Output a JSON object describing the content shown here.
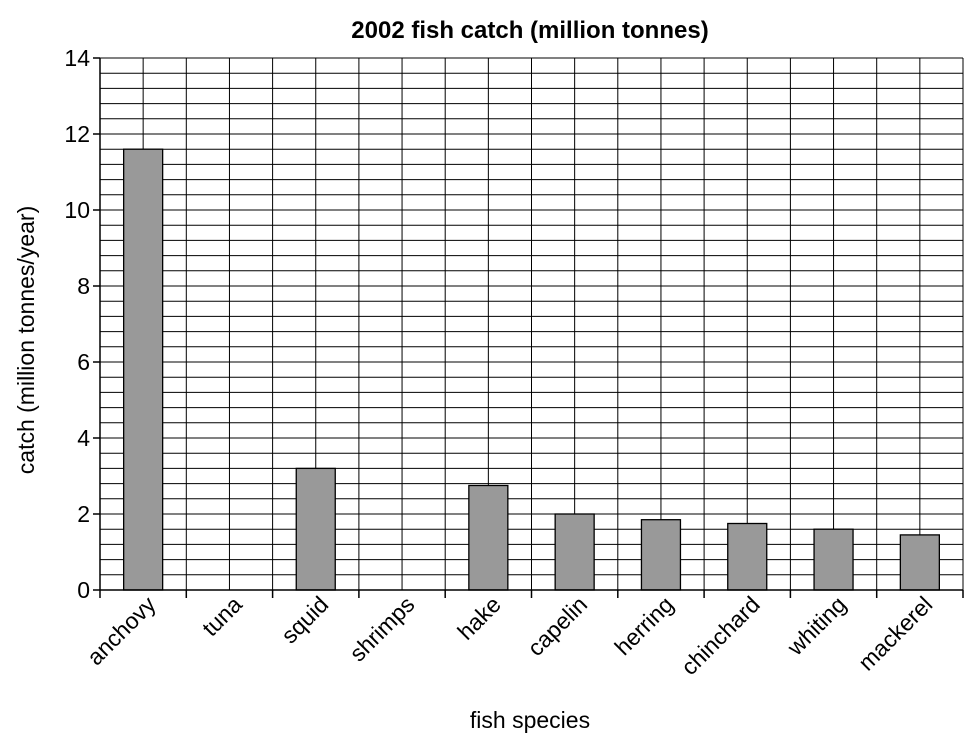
{
  "chart_data": {
    "type": "bar",
    "title": "2002 fish catch (million tonnes)",
    "xlabel": "fish species",
    "ylabel": "catch (million tonnes/year)",
    "categories": [
      "anchovy",
      "tuna",
      "squid",
      "shrimps",
      "hake",
      "capelin",
      "herring",
      "chinchard",
      "whiting",
      "mackerel"
    ],
    "values": [
      11.6,
      null,
      3.2,
      null,
      2.75,
      2.0,
      1.85,
      1.75,
      1.6,
      1.45
    ],
    "ylim": [
      0,
      14
    ],
    "yticks": [
      "0",
      "2",
      "4",
      "6",
      "8",
      "10",
      "12",
      "14"
    ],
    "minor_grid_step": 0.4,
    "grid": true,
    "legend": "none",
    "colors": {
      "bar_fill": "#999999",
      "bar_stroke": "#000000",
      "grid": "#000000",
      "background": "#ffffff"
    }
  }
}
